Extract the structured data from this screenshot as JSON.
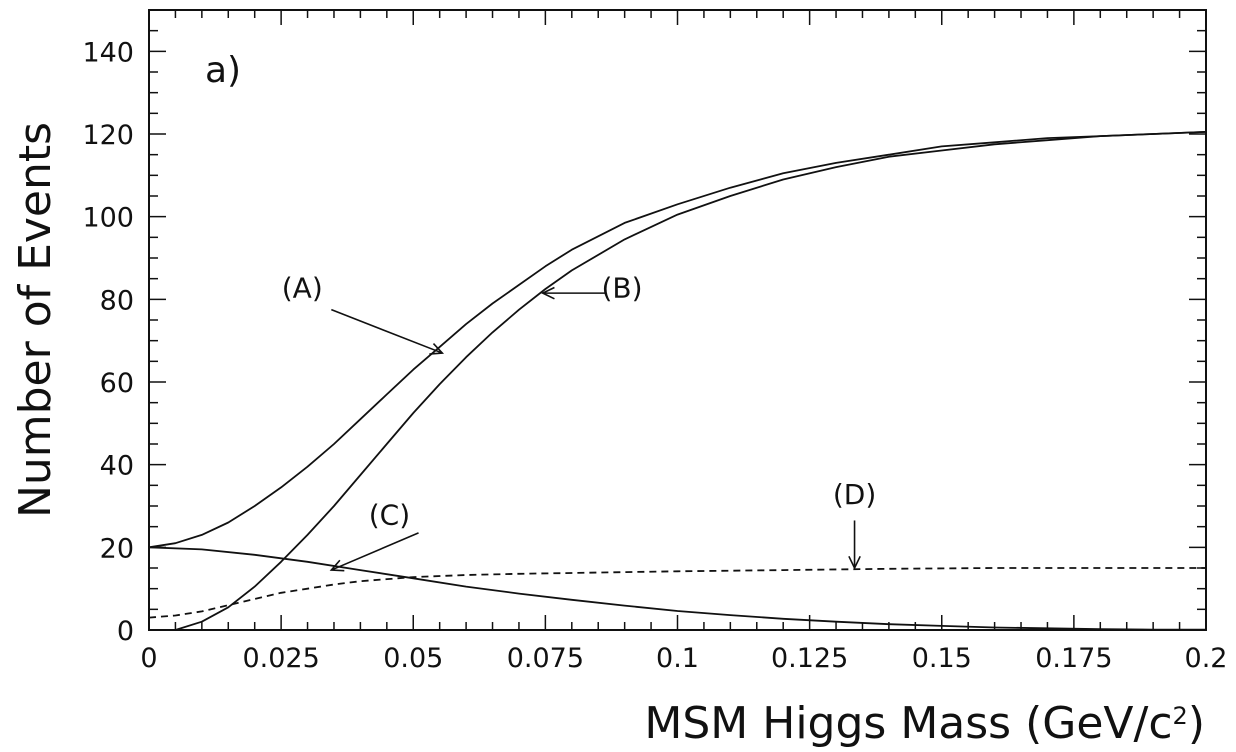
{
  "chart_data": {
    "type": "line",
    "panel_label": "a)",
    "xlabel": "MSM Higgs Mass (GeV/c²)",
    "xlabel_parts": {
      "main": "MSM Higgs Mass (GeV/c",
      "sup": "2",
      "close": ")"
    },
    "ylabel": "Number of Events",
    "xlim": [
      0,
      0.2
    ],
    "ylim": [
      0,
      150
    ],
    "x_ticks": [
      0,
      0.025,
      0.05,
      0.075,
      0.1,
      0.125,
      0.15,
      0.175,
      0.2
    ],
    "x_tick_labels": [
      "0",
      "0.025",
      "0.05",
      "0.075",
      "0.1",
      "0.125",
      "0.15",
      "0.175",
      "0.2"
    ],
    "y_ticks": [
      0,
      20,
      40,
      60,
      80,
      100,
      120,
      140
    ],
    "y_tick_labels": [
      "0",
      "20",
      "40",
      "60",
      "80",
      "100",
      "120",
      "140"
    ],
    "grid": false,
    "series": [
      {
        "name": "(A)",
        "style": "solid",
        "x": [
          0,
          0.005,
          0.01,
          0.015,
          0.02,
          0.025,
          0.03,
          0.035,
          0.04,
          0.045,
          0.05,
          0.055,
          0.06,
          0.065,
          0.07,
          0.075,
          0.08,
          0.09,
          0.1,
          0.11,
          0.12,
          0.13,
          0.14,
          0.15,
          0.16,
          0.17,
          0.18,
          0.19,
          0.2
        ],
        "values": [
          20,
          21,
          23,
          26,
          30,
          34.5,
          39.5,
          45,
          51,
          57,
          63,
          68.5,
          74,
          79,
          83.5,
          88,
          92,
          98.5,
          103,
          107,
          110.5,
          113,
          115,
          117,
          118,
          119,
          119.5,
          120,
          120.5
        ]
      },
      {
        "name": "(B)",
        "style": "solid",
        "x": [
          0.005,
          0.01,
          0.015,
          0.02,
          0.025,
          0.03,
          0.035,
          0.04,
          0.045,
          0.05,
          0.055,
          0.06,
          0.065,
          0.07,
          0.075,
          0.08,
          0.09,
          0.1,
          0.11,
          0.12,
          0.13,
          0.14,
          0.15,
          0.16,
          0.17,
          0.18,
          0.19,
          0.2
        ],
        "values": [
          0,
          2,
          5.5,
          10.5,
          16.5,
          23,
          30,
          37.5,
          45,
          52.5,
          59.5,
          66,
          72,
          77.5,
          82.5,
          87,
          94.5,
          100.5,
          105,
          109,
          112,
          114.5,
          116,
          117.5,
          118.5,
          119.5,
          120,
          120.5
        ]
      },
      {
        "name": "(C)",
        "style": "solid",
        "x": [
          0,
          0.01,
          0.02,
          0.03,
          0.04,
          0.05,
          0.06,
          0.07,
          0.08,
          0.09,
          0.1,
          0.11,
          0.12,
          0.13,
          0.14,
          0.15,
          0.16,
          0.17,
          0.18,
          0.19,
          0.2
        ],
        "values": [
          20,
          19.5,
          18.2,
          16.5,
          14.5,
          12.5,
          10.5,
          8.8,
          7.3,
          5.9,
          4.6,
          3.6,
          2.7,
          2,
          1.4,
          1,
          0.6,
          0.4,
          0.2,
          0.1,
          0.1
        ]
      },
      {
        "name": "(D)",
        "style": "dashed",
        "x": [
          0,
          0.005,
          0.01,
          0.015,
          0.02,
          0.025,
          0.03,
          0.035,
          0.04,
          0.05,
          0.06,
          0.07,
          0.08,
          0.09,
          0.1,
          0.12,
          0.14,
          0.16,
          0.18,
          0.2
        ],
        "values": [
          3,
          3.5,
          4.5,
          6,
          7.5,
          9,
          10,
          11,
          11.8,
          12.8,
          13.3,
          13.6,
          13.8,
          14,
          14.2,
          14.5,
          14.8,
          15,
          15,
          15
        ]
      }
    ],
    "annotations": [
      {
        "text": "(A)",
        "text_x": 0.029,
        "text_y": 80.5,
        "arrow_from": [
          0.0345,
          77.5
        ],
        "arrow_to": [
          0.0555,
          67
        ]
      },
      {
        "text": "(B)",
        "text_x": 0.0895,
        "text_y": 80.5,
        "arrow_from": [
          0.0865,
          81.5
        ],
        "arrow_to": [
          0.0745,
          81.5
        ]
      },
      {
        "text": "(C)",
        "text_x": 0.0455,
        "text_y": 25.5,
        "arrow_from": [
          0.051,
          23.5
        ],
        "arrow_to": [
          0.0345,
          14.5
        ]
      },
      {
        "text": "(D)",
        "text_x": 0.1335,
        "text_y": 30.5,
        "arrow_from": [
          0.1335,
          26.5
        ],
        "arrow_to": [
          0.1335,
          15
        ]
      }
    ]
  }
}
